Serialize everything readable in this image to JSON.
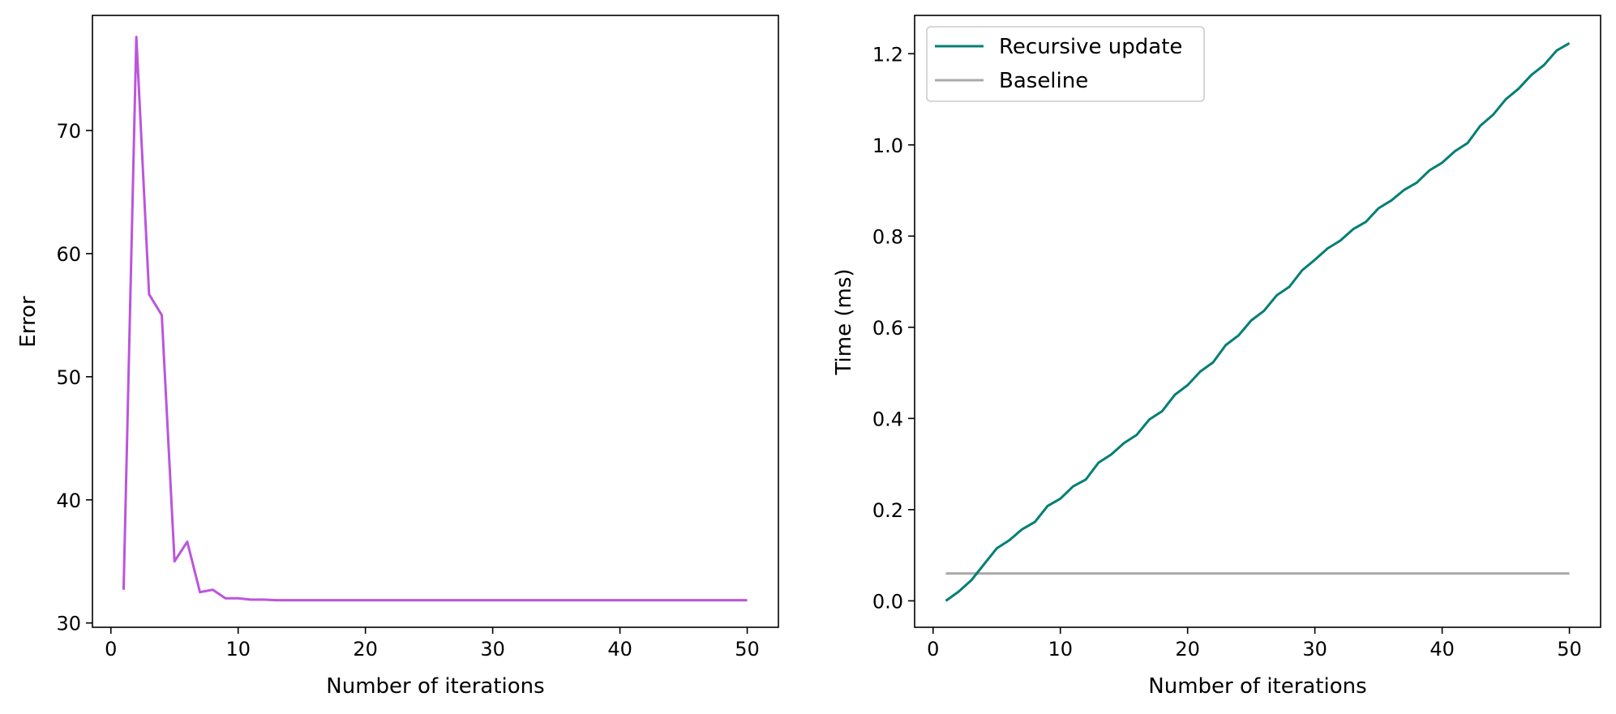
{
  "chart_data": [
    {
      "type": "line",
      "xlabel": "Number of iterations",
      "ylabel": "Error",
      "xlim": [
        -1.45,
        52.45
      ],
      "ylim": [
        29.65,
        79.35
      ],
      "xticks": [
        0,
        10,
        20,
        30,
        40,
        50
      ],
      "yticks": [
        30,
        40,
        50,
        60,
        70
      ],
      "grid": false,
      "legend": null,
      "series": [
        {
          "color": "#bb55dd",
          "x": [
            1,
            2,
            3,
            4,
            5,
            6,
            7,
            8,
            9,
            10,
            11,
            12,
            13,
            14,
            15,
            16,
            17,
            18,
            19,
            20,
            21,
            22,
            23,
            24,
            25,
            26,
            27,
            28,
            29,
            30,
            31,
            32,
            33,
            34,
            35,
            36,
            37,
            38,
            39,
            40,
            41,
            42,
            43,
            44,
            45,
            46,
            47,
            48,
            49,
            50
          ],
          "y": [
            32.7,
            77.6,
            56.7,
            55.0,
            35.0,
            36.6,
            32.5,
            32.7,
            32.0,
            32.0,
            31.9,
            31.9,
            31.85,
            31.85,
            31.85,
            31.85,
            31.85,
            31.85,
            31.85,
            31.85,
            31.85,
            31.85,
            31.85,
            31.85,
            31.85,
            31.85,
            31.85,
            31.85,
            31.85,
            31.85,
            31.85,
            31.85,
            31.85,
            31.85,
            31.85,
            31.85,
            31.85,
            31.85,
            31.85,
            31.85,
            31.85,
            31.85,
            31.85,
            31.85,
            31.85,
            31.85,
            31.85,
            31.85,
            31.85,
            31.85
          ]
        }
      ]
    },
    {
      "type": "line",
      "xlabel": "Number of iterations",
      "ylabel": "Time (ms)",
      "xlim": [
        -1.45,
        52.45
      ],
      "ylim": [
        -0.058,
        1.284
      ],
      "xticks": [
        0,
        10,
        20,
        30,
        40,
        50
      ],
      "yticks": [
        0.0,
        0.2,
        0.4,
        0.6,
        0.8,
        1.0,
        1.2
      ],
      "grid": false,
      "legend": "top-left",
      "series": [
        {
          "name": "Recursive update",
          "color": "#007f73",
          "x": [
            1,
            2,
            3,
            4,
            5,
            6,
            7,
            8,
            9,
            10,
            11,
            12,
            13,
            14,
            15,
            16,
            17,
            18,
            19,
            20,
            21,
            22,
            23,
            24,
            25,
            26,
            27,
            28,
            29,
            30,
            31,
            32,
            33,
            34,
            35,
            36,
            37,
            38,
            39,
            40,
            41,
            42,
            43,
            44,
            45,
            46,
            47,
            48,
            49,
            50
          ],
          "y": [
            0.0,
            0.02,
            0.045,
            0.08,
            0.115,
            0.133,
            0.157,
            0.173,
            0.208,
            0.224,
            0.251,
            0.266,
            0.303,
            0.321,
            0.346,
            0.364,
            0.398,
            0.416,
            0.452,
            0.473,
            0.503,
            0.523,
            0.561,
            0.582,
            0.615,
            0.636,
            0.67,
            0.689,
            0.725,
            0.748,
            0.773,
            0.79,
            0.815,
            0.831,
            0.861,
            0.878,
            0.901,
            0.917,
            0.944,
            0.961,
            0.986,
            1.004,
            1.042,
            1.066,
            1.1,
            1.123,
            1.153,
            1.175,
            1.207,
            1.223
          ]
        },
        {
          "name": "Baseline",
          "color": "#aaaaaa",
          "x": [
            1,
            50
          ],
          "y": [
            0.06,
            0.06
          ]
        }
      ]
    }
  ]
}
